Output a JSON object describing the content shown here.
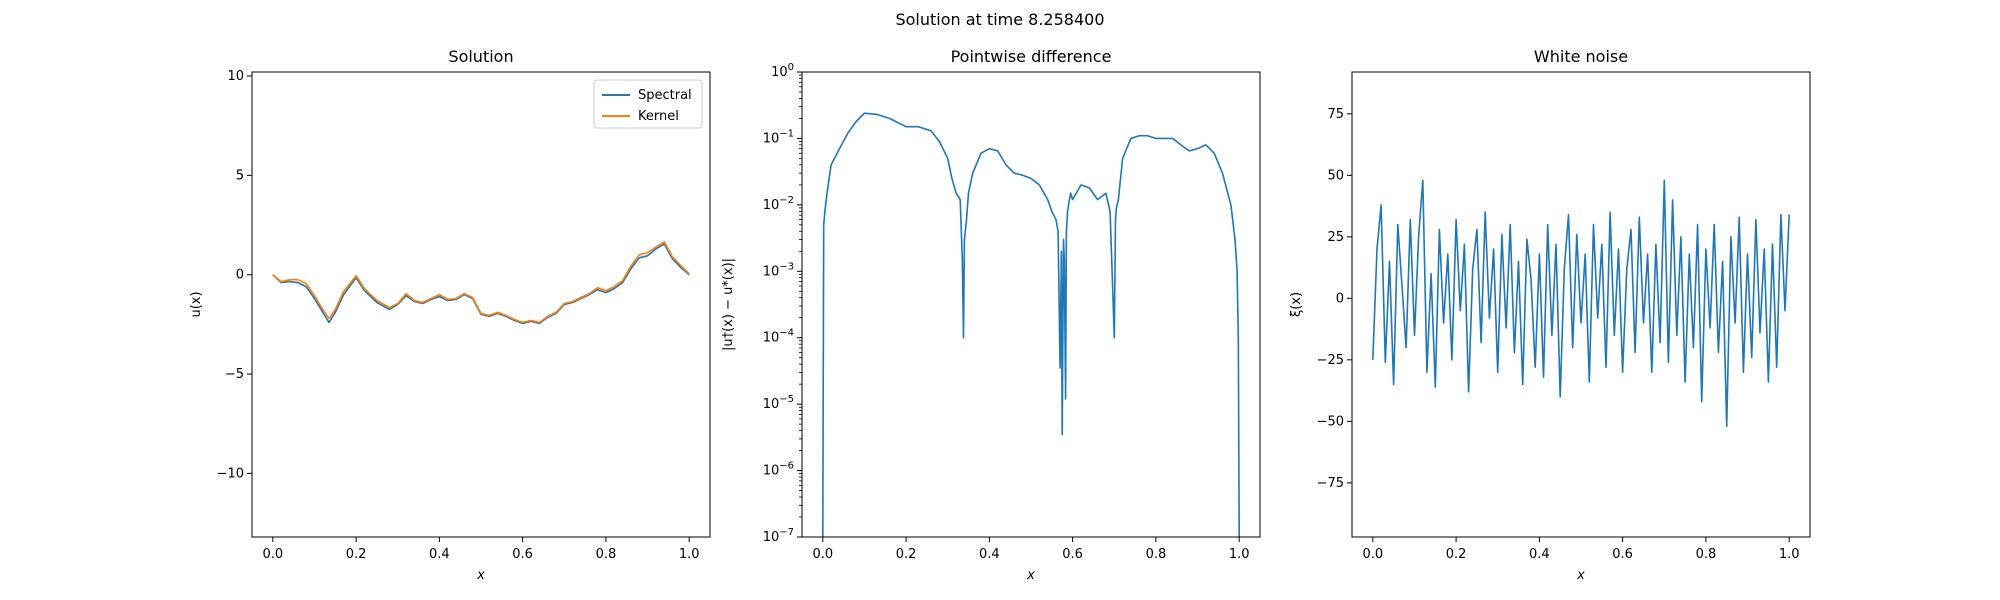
{
  "figure": {
    "suptitle": "Solution at time 8.258400"
  },
  "colors": {
    "spectral": "#1f77b4",
    "kernel": "#ff7f0e",
    "frame": "#000000"
  },
  "chart_data": [
    {
      "type": "line",
      "title": "Solution",
      "xlabel": "x",
      "ylabel": "u(x)",
      "xlim": [
        -0.05,
        1.05
      ],
      "ylim": [
        -13.2,
        10.2
      ],
      "xticks": [
        0.0,
        0.2,
        0.4,
        0.6,
        0.8,
        1.0
      ],
      "xtick_labels": [
        "0.0",
        "0.2",
        "0.4",
        "0.6",
        "0.8",
        "1.0"
      ],
      "yticks": [
        -10,
        -5,
        0,
        5,
        10
      ],
      "ytick_labels": [
        "−10",
        "−5",
        "0",
        "5",
        "10"
      ],
      "legend": {
        "placement": "top-right",
        "entries": [
          "Spectral",
          "Kernel"
        ]
      },
      "series": [
        {
          "name": "Spectral",
          "x": [
            0.0,
            0.02,
            0.04,
            0.06,
            0.08,
            0.1,
            0.12,
            0.135,
            0.15,
            0.17,
            0.2,
            0.22,
            0.25,
            0.28,
            0.3,
            0.32,
            0.34,
            0.36,
            0.38,
            0.4,
            0.42,
            0.44,
            0.46,
            0.48,
            0.5,
            0.52,
            0.54,
            0.56,
            0.58,
            0.6,
            0.62,
            0.64,
            0.66,
            0.68,
            0.7,
            0.72,
            0.74,
            0.76,
            0.78,
            0.8,
            0.82,
            0.84,
            0.86,
            0.88,
            0.9,
            0.92,
            0.94,
            0.96,
            0.98,
            1.0
          ],
          "y": [
            0.0,
            -0.4,
            -0.35,
            -0.4,
            -0.6,
            -1.2,
            -1.9,
            -2.4,
            -1.9,
            -1.0,
            -0.15,
            -0.8,
            -1.4,
            -1.75,
            -1.5,
            -1.05,
            -1.35,
            -1.45,
            -1.25,
            -1.1,
            -1.3,
            -1.25,
            -1.0,
            -1.2,
            -2.0,
            -2.1,
            -1.95,
            -2.1,
            -2.3,
            -2.45,
            -2.35,
            -2.45,
            -2.15,
            -1.95,
            -1.5,
            -1.4,
            -1.2,
            -1.0,
            -0.75,
            -0.9,
            -0.7,
            -0.4,
            0.3,
            0.85,
            0.95,
            1.3,
            1.55,
            0.8,
            0.35,
            0.0
          ]
        },
        {
          "name": "Kernel",
          "x": [
            0.0,
            0.02,
            0.04,
            0.06,
            0.08,
            0.1,
            0.12,
            0.135,
            0.15,
            0.17,
            0.2,
            0.22,
            0.25,
            0.28,
            0.3,
            0.32,
            0.34,
            0.36,
            0.38,
            0.4,
            0.42,
            0.44,
            0.46,
            0.48,
            0.5,
            0.52,
            0.54,
            0.56,
            0.58,
            0.6,
            0.62,
            0.64,
            0.66,
            0.68,
            0.7,
            0.72,
            0.74,
            0.76,
            0.78,
            0.8,
            0.82,
            0.84,
            0.86,
            0.88,
            0.9,
            0.92,
            0.94,
            0.96,
            0.98,
            1.0
          ],
          "y": [
            0.0,
            -0.35,
            -0.25,
            -0.25,
            -0.45,
            -1.05,
            -1.75,
            -2.2,
            -1.75,
            -0.85,
            -0.05,
            -0.7,
            -1.3,
            -1.65,
            -1.45,
            -0.95,
            -1.3,
            -1.4,
            -1.2,
            -1.0,
            -1.25,
            -1.2,
            -0.95,
            -1.15,
            -1.95,
            -2.05,
            -1.9,
            -2.05,
            -2.25,
            -2.4,
            -2.3,
            -2.4,
            -2.1,
            -1.9,
            -1.45,
            -1.35,
            -1.15,
            -0.95,
            -0.65,
            -0.8,
            -0.6,
            -0.3,
            0.45,
            1.0,
            1.1,
            1.4,
            1.65,
            0.9,
            0.45,
            0.05
          ]
        }
      ]
    },
    {
      "type": "line",
      "title": "Pointwise difference",
      "xlabel": "x",
      "ylabel": "|u†(x) − u*(x)|",
      "yscale": "log",
      "xlim": [
        -0.05,
        1.05
      ],
      "ylim": [
        1e-07,
        1
      ],
      "xticks": [
        0.0,
        0.2,
        0.4,
        0.6,
        0.8,
        1.0
      ],
      "xtick_labels": [
        "0.0",
        "0.2",
        "0.4",
        "0.6",
        "0.8",
        "1.0"
      ],
      "yticks": [
        1e-07,
        1e-06,
        1e-05,
        0.0001,
        0.001,
        0.01,
        0.1,
        1
      ],
      "ytick_exponents": [
        "−7",
        "−6",
        "−5",
        "−4",
        "−3",
        "−2",
        "−1",
        "0"
      ],
      "series": [
        {
          "x": [
            0.0,
            0.002,
            0.005,
            0.01,
            0.02,
            0.04,
            0.06,
            0.08,
            0.1,
            0.13,
            0.16,
            0.2,
            0.23,
            0.26,
            0.28,
            0.3,
            0.31,
            0.32,
            0.33,
            0.335,
            0.338,
            0.34,
            0.345,
            0.35,
            0.36,
            0.38,
            0.4,
            0.42,
            0.44,
            0.46,
            0.48,
            0.5,
            0.52,
            0.54,
            0.55,
            0.56,
            0.565,
            0.57,
            0.573,
            0.575,
            0.578,
            0.58,
            0.583,
            0.585,
            0.588,
            0.59,
            0.595,
            0.6,
            0.62,
            0.64,
            0.66,
            0.68,
            0.69,
            0.7,
            0.703,
            0.705,
            0.71,
            0.72,
            0.74,
            0.76,
            0.78,
            0.8,
            0.82,
            0.84,
            0.86,
            0.88,
            0.9,
            0.92,
            0.94,
            0.96,
            0.98,
            0.99,
            0.995,
            0.998,
            1.0
          ],
          "y": [
            1e-07,
            0.005,
            0.008,
            0.015,
            0.04,
            0.07,
            0.12,
            0.18,
            0.24,
            0.23,
            0.2,
            0.15,
            0.15,
            0.13,
            0.09,
            0.05,
            0.025,
            0.015,
            0.012,
            0.0015,
            0.0001,
            0.003,
            0.006,
            0.015,
            0.03,
            0.06,
            0.07,
            0.065,
            0.04,
            0.03,
            0.028,
            0.025,
            0.02,
            0.012,
            0.008,
            0.006,
            0.004,
            3.5e-05,
            0.002,
            3.5e-06,
            0.003,
            0.0015,
            1.2e-05,
            0.004,
            0.008,
            0.01,
            0.015,
            0.012,
            0.02,
            0.018,
            0.012,
            0.015,
            0.008,
            0.0001,
            0.006,
            0.009,
            0.012,
            0.05,
            0.1,
            0.11,
            0.11,
            0.1,
            0.1,
            0.1,
            0.08,
            0.065,
            0.07,
            0.08,
            0.06,
            0.03,
            0.01,
            0.003,
            0.001,
            0.0001,
            1e-07
          ]
        }
      ]
    },
    {
      "type": "line",
      "title": "White noise",
      "xlabel": "x",
      "ylabel": "ξ(x)",
      "xlim": [
        -0.05,
        1.05
      ],
      "ylim": [
        -97,
        92
      ],
      "xticks": [
        0.0,
        0.2,
        0.4,
        0.6,
        0.8,
        1.0
      ],
      "xtick_labels": [
        "0.0",
        "0.2",
        "0.4",
        "0.6",
        "0.8",
        "1.0"
      ],
      "yticks": [
        -75,
        -50,
        -25,
        0,
        25,
        50,
        75
      ],
      "ytick_labels": [
        "−75",
        "−50",
        "−25",
        "0",
        "25",
        "50",
        "75"
      ],
      "series": [
        {
          "x": [
            0.0,
            0.01,
            0.02,
            0.03,
            0.04,
            0.05,
            0.06,
            0.07,
            0.08,
            0.09,
            0.1,
            0.11,
            0.12,
            0.13,
            0.14,
            0.15,
            0.16,
            0.17,
            0.18,
            0.19,
            0.2,
            0.21,
            0.22,
            0.23,
            0.24,
            0.25,
            0.26,
            0.27,
            0.28,
            0.29,
            0.3,
            0.31,
            0.32,
            0.33,
            0.34,
            0.35,
            0.36,
            0.37,
            0.38,
            0.39,
            0.4,
            0.41,
            0.42,
            0.43,
            0.44,
            0.45,
            0.46,
            0.47,
            0.48,
            0.49,
            0.5,
            0.51,
            0.52,
            0.53,
            0.54,
            0.55,
            0.56,
            0.57,
            0.58,
            0.59,
            0.6,
            0.61,
            0.62,
            0.63,
            0.64,
            0.65,
            0.66,
            0.67,
            0.68,
            0.69,
            0.7,
            0.71,
            0.72,
            0.73,
            0.74,
            0.75,
            0.76,
            0.77,
            0.78,
            0.79,
            0.8,
            0.81,
            0.82,
            0.83,
            0.84,
            0.85,
            0.86,
            0.87,
            0.88,
            0.89,
            0.9,
            0.91,
            0.92,
            0.93,
            0.94,
            0.95,
            0.96,
            0.97,
            0.98,
            0.99,
            1.0
          ],
          "y": [
            -25,
            20,
            38,
            -26,
            15,
            -35,
            30,
            5,
            -20,
            32,
            -15,
            25,
            48,
            -30,
            10,
            -36,
            28,
            -10,
            18,
            -25,
            32,
            -5,
            22,
            -38,
            12,
            28,
            -18,
            35,
            -8,
            20,
            -30,
            26,
            -12,
            30,
            -22,
            15,
            -35,
            24,
            8,
            -28,
            18,
            -32,
            30,
            -15,
            22,
            -40,
            12,
            34,
            -20,
            26,
            -10,
            18,
            -34,
            30,
            -8,
            22,
            -28,
            35,
            -15,
            20,
            -30,
            12,
            28,
            -22,
            33,
            -10,
            18,
            -30,
            22,
            -18,
            48,
            -26,
            40,
            -15,
            25,
            -34,
            18,
            -20,
            30,
            -42,
            20,
            -12,
            30,
            -22,
            15,
            -52,
            25,
            -10,
            33,
            -30,
            18,
            -24,
            32,
            -14,
            20,
            -34,
            22,
            -28,
            34,
            -5,
            34
          ]
        }
      ]
    }
  ]
}
